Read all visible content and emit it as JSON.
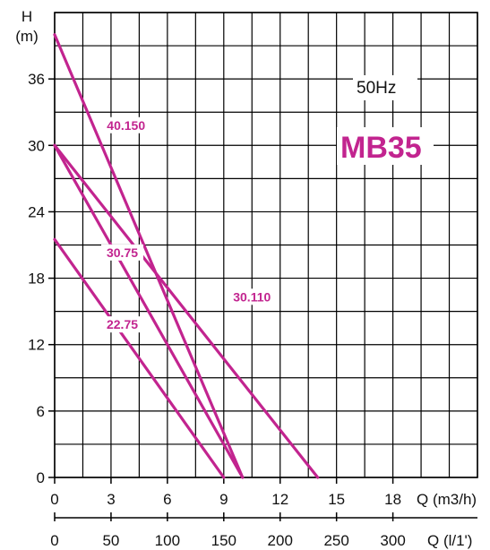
{
  "chart_data": {
    "type": "line",
    "title": "MB35",
    "subtitle": "50Hz",
    "ylabel_top": "H",
    "ylabel_unit": "(m)",
    "xlabel": "Q (m3/h)",
    "xlabel2": "Q (l/1')",
    "xlim": [
      0,
      22.5
    ],
    "ylim": [
      0,
      42
    ],
    "x_ticks": [
      0,
      3,
      6,
      9,
      12,
      15,
      18
    ],
    "x2_ticks": [
      0,
      50,
      100,
      150,
      200,
      250,
      300
    ],
    "y_ticks": [
      0,
      6,
      12,
      18,
      24,
      30,
      36
    ],
    "grid": true,
    "curve_color": "#c2248f",
    "series": [
      {
        "name": "40.150",
        "x": [
          0,
          10
        ],
        "y": [
          40,
          0
        ]
      },
      {
        "name": "30.110",
        "x": [
          0,
          14
        ],
        "y": [
          30,
          0
        ]
      },
      {
        "name": "30.75",
        "x": [
          0,
          10
        ],
        "y": [
          30,
          0
        ]
      },
      {
        "name": "22.75",
        "x": [
          0,
          9
        ],
        "y": [
          21.5,
          0
        ]
      }
    ]
  }
}
